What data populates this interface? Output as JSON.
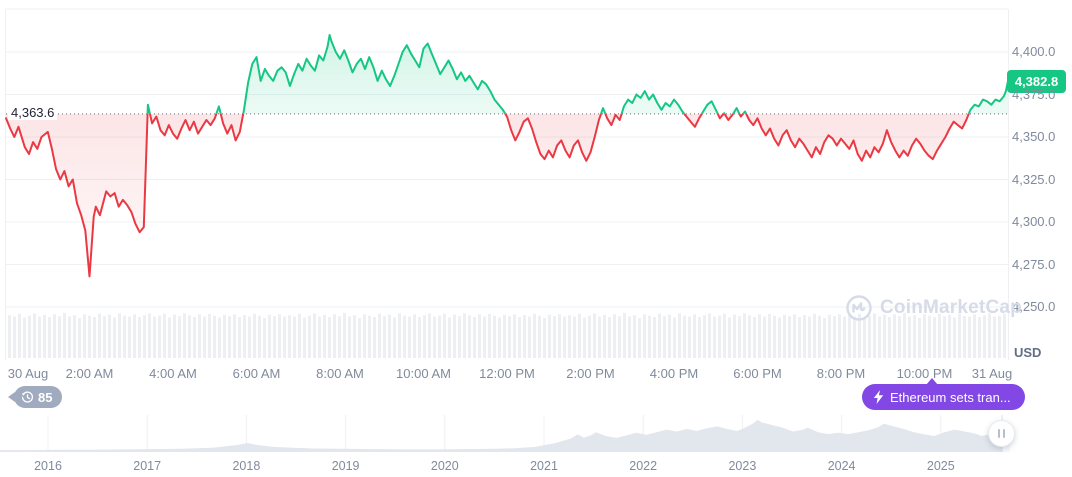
{
  "colors": {
    "green": "#16c784",
    "red": "#ea3943",
    "purple": "#8247e5",
    "badge_gray": "#a1abbf",
    "axis_text": "#808a9d",
    "watermark": "#d6dbe8",
    "gridline": "#eef0f4",
    "volume_bar": "#edeff3",
    "navigator_fill": "#e2e6ed",
    "baseline_dotted": "#656e7e"
  },
  "badges": {
    "watchers_count": "85",
    "news_text": "Ethereum sets tran..."
  },
  "watermark": {
    "text": "CoinMarketCap"
  },
  "chart_data": {
    "type": "area",
    "title": "",
    "pair_unit": "USD",
    "baseline": 4363.6,
    "baseline_label": "4,363.6",
    "current_price": 4382.8,
    "current_price_label": "4,382.8",
    "ylim": [
      4240,
      4415
    ],
    "y_ticks": [
      {
        "v": 4400,
        "text": "4,400.0"
      },
      {
        "v": 4375,
        "text": "4,375.0"
      },
      {
        "v": 4350,
        "text": "4,350.0"
      },
      {
        "v": 4325,
        "text": "4,325.0"
      },
      {
        "v": 4300,
        "text": "4,300.0"
      },
      {
        "v": 4275,
        "text": "4,275.0"
      },
      {
        "v": 4250,
        "text": "4,250.0"
      }
    ],
    "x_unit": "hours since 30 Aug 00:00",
    "x_ticks": [
      {
        "t": 0,
        "text": "30 Aug"
      },
      {
        "t": 2,
        "text": "2:00 AM"
      },
      {
        "t": 4,
        "text": "4:00 AM"
      },
      {
        "t": 6,
        "text": "6:00 AM"
      },
      {
        "t": 8,
        "text": "8:00 AM"
      },
      {
        "t": 10,
        "text": "10:00 AM"
      },
      {
        "t": 12,
        "text": "12:00 PM"
      },
      {
        "t": 14,
        "text": "2:00 PM"
      },
      {
        "t": 16,
        "text": "4:00 PM"
      },
      {
        "t": 18,
        "text": "6:00 PM"
      },
      {
        "t": 20,
        "text": "8:00 PM"
      },
      {
        "t": 22,
        "text": "10:00 PM"
      },
      {
        "t": 24,
        "text": "31 Aug"
      }
    ],
    "points": [
      [
        0,
        4361
      ],
      [
        0.1,
        4355
      ],
      [
        0.2,
        4350
      ],
      [
        0.3,
        4356
      ],
      [
        0.45,
        4344
      ],
      [
        0.55,
        4340
      ],
      [
        0.65,
        4347
      ],
      [
        0.75,
        4343
      ],
      [
        0.85,
        4350
      ],
      [
        1,
        4353
      ],
      [
        1.1,
        4343
      ],
      [
        1.2,
        4331
      ],
      [
        1.3,
        4325
      ],
      [
        1.4,
        4330
      ],
      [
        1.5,
        4321
      ],
      [
        1.6,
        4325
      ],
      [
        1.7,
        4311
      ],
      [
        1.8,
        4304
      ],
      [
        1.9,
        4295
      ],
      [
        2,
        4268
      ],
      [
        2.1,
        4303
      ],
      [
        2.15,
        4309
      ],
      [
        2.25,
        4304
      ],
      [
        2.4,
        4318
      ],
      [
        2.5,
        4315
      ],
      [
        2.6,
        4317
      ],
      [
        2.7,
        4309
      ],
      [
        2.8,
        4313
      ],
      [
        2.9,
        4310
      ],
      [
        3,
        4306
      ],
      [
        3.1,
        4299
      ],
      [
        3.2,
        4294
      ],
      [
        3.3,
        4297
      ],
      [
        3.4,
        4369
      ],
      [
        3.5,
        4358
      ],
      [
        3.6,
        4362
      ],
      [
        3.7,
        4354
      ],
      [
        3.8,
        4351
      ],
      [
        3.9,
        4357
      ],
      [
        4,
        4352
      ],
      [
        4.1,
        4349
      ],
      [
        4.2,
        4355
      ],
      [
        4.3,
        4360
      ],
      [
        4.4,
        4354
      ],
      [
        4.5,
        4359
      ],
      [
        4.6,
        4352
      ],
      [
        4.7,
        4356
      ],
      [
        4.8,
        4360
      ],
      [
        4.9,
        4357
      ],
      [
        5,
        4361
      ],
      [
        5.1,
        4368
      ],
      [
        5.2,
        4358
      ],
      [
        5.3,
        4352
      ],
      [
        5.4,
        4357
      ],
      [
        5.5,
        4348
      ],
      [
        5.6,
        4353
      ],
      [
        5.7,
        4366
      ],
      [
        5.8,
        4382
      ],
      [
        5.9,
        4393
      ],
      [
        6,
        4397
      ],
      [
        6.05,
        4390
      ],
      [
        6.1,
        4383
      ],
      [
        6.2,
        4390
      ],
      [
        6.3,
        4386
      ],
      [
        6.4,
        4383
      ],
      [
        6.5,
        4389
      ],
      [
        6.6,
        4391
      ],
      [
        6.7,
        4388
      ],
      [
        6.8,
        4380
      ],
      [
        6.9,
        4387
      ],
      [
        7,
        4393
      ],
      [
        7.1,
        4389
      ],
      [
        7.2,
        4396
      ],
      [
        7.3,
        4392
      ],
      [
        7.4,
        4389
      ],
      [
        7.5,
        4398
      ],
      [
        7.6,
        4395
      ],
      [
        7.7,
        4403
      ],
      [
        7.75,
        4410
      ],
      [
        7.8,
        4406
      ],
      [
        7.9,
        4400
      ],
      [
        8,
        4396
      ],
      [
        8.1,
        4401
      ],
      [
        8.2,
        4395
      ],
      [
        8.3,
        4388
      ],
      [
        8.4,
        4393
      ],
      [
        8.5,
        4396
      ],
      [
        8.6,
        4390
      ],
      [
        8.7,
        4397
      ],
      [
        8.8,
        4391
      ],
      [
        8.9,
        4383
      ],
      [
        9,
        4389
      ],
      [
        9.1,
        4384
      ],
      [
        9.2,
        4380
      ],
      [
        9.3,
        4386
      ],
      [
        9.4,
        4393
      ],
      [
        9.5,
        4400
      ],
      [
        9.6,
        4404
      ],
      [
        9.7,
        4399
      ],
      [
        9.8,
        4395
      ],
      [
        9.9,
        4391
      ],
      [
        10,
        4402
      ],
      [
        10.1,
        4405
      ],
      [
        10.2,
        4399
      ],
      [
        10.3,
        4393
      ],
      [
        10.4,
        4387
      ],
      [
        10.5,
        4391
      ],
      [
        10.6,
        4395
      ],
      [
        10.7,
        4390
      ],
      [
        10.8,
        4384
      ],
      [
        10.9,
        4388
      ],
      [
        11,
        4383
      ],
      [
        11.1,
        4386
      ],
      [
        11.2,
        4382
      ],
      [
        11.3,
        4378
      ],
      [
        11.4,
        4383
      ],
      [
        11.5,
        4381
      ],
      [
        11.6,
        4377
      ],
      [
        11.7,
        4372
      ],
      [
        11.8,
        4369
      ],
      [
        11.9,
        4366
      ],
      [
        12,
        4362
      ],
      [
        12.1,
        4354
      ],
      [
        12.2,
        4348
      ],
      [
        12.3,
        4353
      ],
      [
        12.4,
        4359
      ],
      [
        12.5,
        4361
      ],
      [
        12.6,
        4355
      ],
      [
        12.7,
        4347
      ],
      [
        12.8,
        4340
      ],
      [
        12.9,
        4337
      ],
      [
        13,
        4342
      ],
      [
        13.1,
        4338
      ],
      [
        13.2,
        4345
      ],
      [
        13.3,
        4348
      ],
      [
        13.4,
        4342
      ],
      [
        13.5,
        4338
      ],
      [
        13.6,
        4345
      ],
      [
        13.7,
        4348
      ],
      [
        13.8,
        4341
      ],
      [
        13.9,
        4336
      ],
      [
        14,
        4341
      ],
      [
        14.1,
        4350
      ],
      [
        14.2,
        4360
      ],
      [
        14.3,
        4367
      ],
      [
        14.4,
        4361
      ],
      [
        14.5,
        4357
      ],
      [
        14.6,
        4363
      ],
      [
        14.7,
        4360
      ],
      [
        14.8,
        4368
      ],
      [
        14.9,
        4372
      ],
      [
        15,
        4370
      ],
      [
        15.1,
        4375
      ],
      [
        15.2,
        4373
      ],
      [
        15.3,
        4377
      ],
      [
        15.4,
        4372
      ],
      [
        15.5,
        4375
      ],
      [
        15.6,
        4370
      ],
      [
        15.7,
        4366
      ],
      [
        15.8,
        4370
      ],
      [
        15.9,
        4368
      ],
      [
        16,
        4372
      ],
      [
        16.1,
        4369
      ],
      [
        16.2,
        4365
      ],
      [
        16.3,
        4362
      ],
      [
        16.4,
        4359
      ],
      [
        16.5,
        4356
      ],
      [
        16.6,
        4361
      ],
      [
        16.7,
        4365
      ],
      [
        16.8,
        4369
      ],
      [
        16.9,
        4371
      ],
      [
        17,
        4366
      ],
      [
        17.1,
        4361
      ],
      [
        17.2,
        4364
      ],
      [
        17.3,
        4360
      ],
      [
        17.4,
        4363
      ],
      [
        17.5,
        4367
      ],
      [
        17.6,
        4362
      ],
      [
        17.7,
        4365
      ],
      [
        17.8,
        4360
      ],
      [
        17.9,
        4357
      ],
      [
        18,
        4361
      ],
      [
        18.1,
        4355
      ],
      [
        18.2,
        4351
      ],
      [
        18.3,
        4355
      ],
      [
        18.4,
        4349
      ],
      [
        18.5,
        4345
      ],
      [
        18.6,
        4351
      ],
      [
        18.7,
        4354
      ],
      [
        18.8,
        4348
      ],
      [
        18.9,
        4344
      ],
      [
        19,
        4349
      ],
      [
        19.1,
        4346
      ],
      [
        19.2,
        4342
      ],
      [
        19.3,
        4338
      ],
      [
        19.4,
        4344
      ],
      [
        19.5,
        4340
      ],
      [
        19.6,
        4347
      ],
      [
        19.7,
        4351
      ],
      [
        19.8,
        4349
      ],
      [
        19.9,
        4345
      ],
      [
        20,
        4349
      ],
      [
        20.1,
        4346
      ],
      [
        20.2,
        4343
      ],
      [
        20.3,
        4348
      ],
      [
        20.4,
        4340
      ],
      [
        20.5,
        4336
      ],
      [
        20.6,
        4342
      ],
      [
        20.7,
        4338
      ],
      [
        20.8,
        4344
      ],
      [
        20.9,
        4341
      ],
      [
        21,
        4346
      ],
      [
        21.1,
        4354
      ],
      [
        21.2,
        4347
      ],
      [
        21.3,
        4342
      ],
      [
        21.4,
        4338
      ],
      [
        21.5,
        4342
      ],
      [
        21.6,
        4339
      ],
      [
        21.7,
        4345
      ],
      [
        21.8,
        4349
      ],
      [
        21.9,
        4346
      ],
      [
        22,
        4342
      ],
      [
        22.1,
        4339
      ],
      [
        22.2,
        4337
      ],
      [
        22.3,
        4342
      ],
      [
        22.4,
        4346
      ],
      [
        22.5,
        4350
      ],
      [
        22.6,
        4355
      ],
      [
        22.7,
        4359
      ],
      [
        22.8,
        4357
      ],
      [
        22.9,
        4355
      ],
      [
        23,
        4360
      ],
      [
        23.1,
        4366
      ],
      [
        23.2,
        4369
      ],
      [
        23.3,
        4368
      ],
      [
        23.4,
        4372
      ],
      [
        23.5,
        4371
      ],
      [
        23.6,
        4369
      ],
      [
        23.7,
        4372
      ],
      [
        23.8,
        4371
      ],
      [
        23.9,
        4374
      ],
      [
        23.95,
        4377
      ],
      [
        24,
        4382.8
      ]
    ],
    "volume": {
      "type": "bar",
      "bar_heights_norm": [
        0.93,
        0.9,
        0.96,
        0.88,
        0.92,
        0.97,
        0.9,
        0.94,
        0.89,
        0.95,
        0.91,
        0.98,
        0.9,
        0.93,
        0.87,
        0.95,
        0.92,
        0.89,
        0.96,
        0.91,
        0.94,
        0.88,
        0.97,
        0.92,
        0.9,
        0.95,
        0.89,
        0.93,
        0.97,
        0.9,
        0.92,
        0.96,
        0.88,
        0.94,
        0.91,
        0.97,
        0.93,
        0.89,
        0.95,
        0.9,
        0.96,
        0.92,
        0.88,
        0.94,
        0.91,
        0.95,
        0.89,
        0.93,
        0.9,
        0.96,
        0.92,
        0.87,
        0.94,
        0.91,
        0.95,
        0.9
      ]
    },
    "navigator": {
      "type": "area",
      "years": [
        "2016",
        "2017",
        "2018",
        "2019",
        "2020",
        "2021",
        "2022",
        "2023",
        "2024",
        "2025"
      ],
      "series_norm": [
        [
          0,
          0.06
        ],
        [
          0.03,
          0.06
        ],
        [
          0.06,
          0.07
        ],
        [
          0.09,
          0.07
        ],
        [
          0.12,
          0.08
        ],
        [
          0.15,
          0.09
        ],
        [
          0.18,
          0.1
        ],
        [
          0.21,
          0.13
        ],
        [
          0.235,
          0.22
        ],
        [
          0.245,
          0.28
        ],
        [
          0.255,
          0.22
        ],
        [
          0.27,
          0.16
        ],
        [
          0.29,
          0.13
        ],
        [
          0.31,
          0.11
        ],
        [
          0.34,
          0.1
        ],
        [
          0.37,
          0.09
        ],
        [
          0.4,
          0.08
        ],
        [
          0.43,
          0.08
        ],
        [
          0.46,
          0.09
        ],
        [
          0.49,
          0.1
        ],
        [
          0.51,
          0.12
        ],
        [
          0.53,
          0.16
        ],
        [
          0.55,
          0.28
        ],
        [
          0.565,
          0.42
        ],
        [
          0.572,
          0.55
        ],
        [
          0.578,
          0.45
        ],
        [
          0.585,
          0.52
        ],
        [
          0.59,
          0.62
        ],
        [
          0.6,
          0.5
        ],
        [
          0.61,
          0.44
        ],
        [
          0.62,
          0.52
        ],
        [
          0.63,
          0.6
        ],
        [
          0.64,
          0.54
        ],
        [
          0.65,
          0.62
        ],
        [
          0.66,
          0.7
        ],
        [
          0.67,
          0.64
        ],
        [
          0.68,
          0.72
        ],
        [
          0.69,
          0.66
        ],
        [
          0.7,
          0.74
        ],
        [
          0.71,
          0.8
        ],
        [
          0.72,
          0.72
        ],
        [
          0.73,
          0.66
        ],
        [
          0.735,
          0.72
        ],
        [
          0.745,
          0.88
        ],
        [
          0.75,
          1.0
        ],
        [
          0.755,
          0.92
        ],
        [
          0.765,
          0.84
        ],
        [
          0.775,
          0.76
        ],
        [
          0.785,
          0.64
        ],
        [
          0.795,
          0.7
        ],
        [
          0.8,
          0.76
        ],
        [
          0.81,
          0.62
        ],
        [
          0.82,
          0.56
        ],
        [
          0.83,
          0.6
        ],
        [
          0.84,
          0.56
        ],
        [
          0.85,
          0.62
        ],
        [
          0.86,
          0.68
        ],
        [
          0.87,
          0.78
        ],
        [
          0.875,
          0.88
        ],
        [
          0.885,
          0.8
        ],
        [
          0.895,
          0.72
        ],
        [
          0.905,
          0.62
        ],
        [
          0.915,
          0.55
        ],
        [
          0.925,
          0.5
        ],
        [
          0.935,
          0.62
        ],
        [
          0.945,
          0.7
        ],
        [
          0.955,
          0.64
        ],
        [
          0.965,
          0.58
        ],
        [
          0.972,
          0.5
        ],
        [
          0.98,
          0.56
        ],
        [
          0.99,
          0.64
        ],
        [
          1,
          0.58
        ]
      ]
    }
  }
}
